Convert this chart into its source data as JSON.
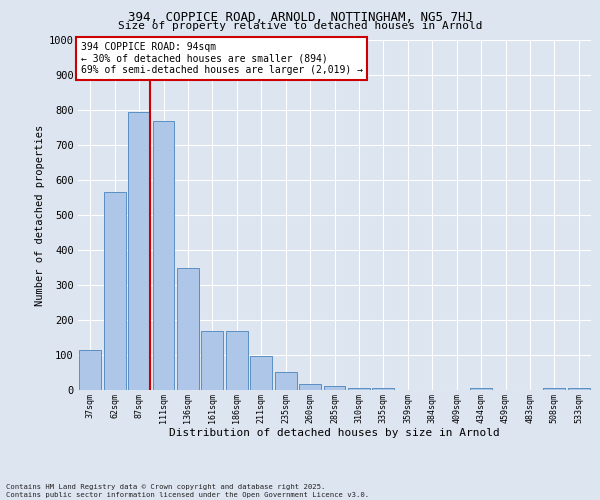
{
  "title_line1": "394, COPPICE ROAD, ARNOLD, NOTTINGHAM, NG5 7HJ",
  "title_line2": "Size of property relative to detached houses in Arnold",
  "xlabel": "Distribution of detached houses by size in Arnold",
  "ylabel": "Number of detached properties",
  "categories": [
    "37sqm",
    "62sqm",
    "87sqm",
    "111sqm",
    "136sqm",
    "161sqm",
    "186sqm",
    "211sqm",
    "235sqm",
    "260sqm",
    "285sqm",
    "310sqm",
    "335sqm",
    "359sqm",
    "384sqm",
    "409sqm",
    "434sqm",
    "459sqm",
    "483sqm",
    "508sqm",
    "533sqm"
  ],
  "values": [
    113,
    567,
    795,
    770,
    350,
    168,
    168,
    98,
    52,
    18,
    12,
    5,
    5,
    0,
    0,
    0,
    5,
    0,
    0,
    5,
    5
  ],
  "bar_color": "#aec6e8",
  "bar_edge_color": "#5a8fc2",
  "vline_color": "#cc0000",
  "vline_x_index": 2,
  "annotation_text": "394 COPPICE ROAD: 94sqm\n← 30% of detached houses are smaller (894)\n69% of semi-detached houses are larger (2,019) →",
  "annotation_box_color": "#ffffff",
  "annotation_box_edge": "#cc0000",
  "ylim": [
    0,
    1000
  ],
  "yticks": [
    0,
    100,
    200,
    300,
    400,
    500,
    600,
    700,
    800,
    900,
    1000
  ],
  "background_color": "#dde5f0",
  "grid_color": "#ffffff",
  "footnote": "Contains HM Land Registry data © Crown copyright and database right 2025.\nContains public sector information licensed under the Open Government Licence v3.0."
}
